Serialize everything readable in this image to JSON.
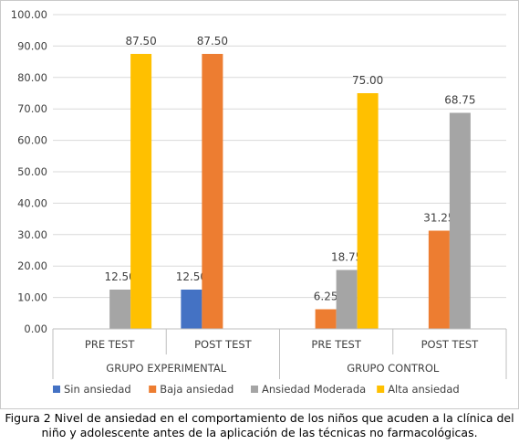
{
  "chart_data": {
    "type": "bar",
    "groups": [
      {
        "label": "GRUPO EXPERIMENTAL",
        "categories": [
          "PRE TEST",
          "POST TEST"
        ]
      },
      {
        "label": "GRUPO CONTROL",
        "categories": [
          "PRE TEST",
          "POST TEST"
        ]
      }
    ],
    "series": [
      {
        "name": "Sin ansiedad",
        "color": "#4472C4",
        "values": [
          null,
          12.5,
          null,
          null
        ]
      },
      {
        "name": "Baja ansiedad",
        "color": "#ED7D31",
        "values": [
          null,
          87.5,
          6.25,
          31.25
        ]
      },
      {
        "name": "Ansiedad Moderada",
        "color": "#A5A5A5",
        "values": [
          12.5,
          null,
          18.75,
          68.75
        ]
      },
      {
        "name": "Alta ansiedad",
        "color": "#FFC000",
        "values": [
          87.5,
          null,
          75.0,
          null
        ]
      }
    ],
    "ylim": [
      0,
      100
    ],
    "yticks": [
      "0.00",
      "10.00",
      "20.00",
      "30.00",
      "40.00",
      "50.00",
      "60.00",
      "70.00",
      "80.00",
      "90.00",
      "100.00"
    ],
    "legend_position": "bottom",
    "gridlines": true
  },
  "caption": {
    "line1": "Figura 2 Nivel de ansiedad en el comportamiento de los niños que acuden a la clínica del",
    "line2": "niño y adolescente antes de la aplicación de las técnicas no farmacológicas."
  }
}
